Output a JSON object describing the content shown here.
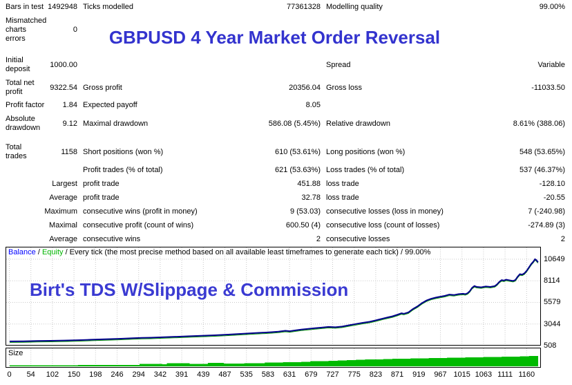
{
  "report": {
    "title": "GBPUSD 4 Year Market Order Reversal",
    "rows": [
      {
        "a": "Bars in test",
        "b": "1492948",
        "c": "Ticks modelled",
        "d": "77361328",
        "e": "Modelling quality",
        "f": "99.00%"
      },
      {
        "a": "Mismatched\ncharts\nerrors",
        "b": "0",
        "c": "",
        "d": "",
        "e": "",
        "f": ""
      },
      {
        "a": "Initial\ndeposit",
        "b": "1000.00",
        "c": "",
        "d": "",
        "e": "Spread",
        "f": "Variable"
      },
      {
        "a": "Total net\nprofit",
        "b": "9322.54",
        "c": "Gross profit",
        "d": "20356.04",
        "e": "Gross loss",
        "f": "-11033.50"
      },
      {
        "a": "Profit factor",
        "b": "1.84",
        "c": "Expected payoff",
        "d": "8.05",
        "e": "",
        "f": ""
      },
      {
        "a": "Absolute\ndrawdown",
        "b": "9.12",
        "c": "Maximal drawdown",
        "d": "586.08 (5.45%)",
        "e": "Relative drawdown",
        "f": "8.61% (388.06)"
      },
      {
        "a": "Total\ntrades",
        "b": "1158",
        "c": "Short positions (won %)",
        "d": "610 (53.61%)",
        "e": "Long positions (won %)",
        "f": "548 (53.65%)"
      },
      {
        "a": "",
        "b": "",
        "c": "Profit trades (% of total)",
        "d": "621 (53.63%)",
        "e": "Loss trades (% of total)",
        "f": "537 (46.37%)"
      },
      {
        "a": "",
        "b": "Largest",
        "c": "profit trade",
        "d": "451.88",
        "e": "loss trade",
        "f": "-128.10"
      },
      {
        "a": "",
        "b": "Average",
        "c": "profit trade",
        "d": "32.78",
        "e": "loss trade",
        "f": "-20.55"
      },
      {
        "a": "",
        "b": "Maximum",
        "c": "consecutive wins (profit in money)",
        "d": "9 (53.03)",
        "e": "consecutive losses (loss in money)",
        "f": "7 (-240.98)"
      },
      {
        "a": "",
        "b": "Maximal",
        "c": "consecutive profit (count of wins)",
        "d": "600.50 (4)",
        "e": "consecutive loss (count of losses)",
        "f": "-274.89 (3)"
      },
      {
        "a": "",
        "b": "Average",
        "c": "consecutive wins",
        "d": "2",
        "e": "consecutive losses",
        "f": "2"
      }
    ]
  },
  "chart": {
    "legend_balance": "Balance",
    "legend_sep": " / ",
    "legend_equity": "Equity",
    "legend_rest": " / Every tick (the most precise method based on all available least timeframes to generate each tick) / 99.00%",
    "watermark": "Birt's TDS W/Slippage & Commission",
    "size_label": "Size",
    "colors": {
      "grid": "#C8C8C8",
      "balance_line": "#00008B",
      "equity_line": "#009000",
      "size_fill": "#00BA00",
      "legend_balance": "#0000FF",
      "legend_equity": "#00B400",
      "title_blue": "#3333CE"
    }
  },
  "chart_data": {
    "type": "line",
    "title": "Balance / Equity curve with trade size histogram",
    "xlabel_ticks": [
      0,
      54,
      102,
      150,
      198,
      246,
      294,
      342,
      391,
      439,
      487,
      535,
      583,
      631,
      679,
      727,
      775,
      823,
      871,
      919,
      967,
      1015,
      1063,
      1111,
      1160
    ],
    "ylabel_ticks": [
      508,
      3044,
      5579,
      8114,
      10649
    ],
    "xlim": [
      0,
      1185
    ],
    "ylim": [
      300,
      11000
    ],
    "grid": true,
    "legend_position": "top-left",
    "series": [
      {
        "name": "Balance",
        "type": "line",
        "points": [
          [
            0,
            1000
          ],
          [
            30,
            1020
          ],
          [
            60,
            1050
          ],
          [
            90,
            1075
          ],
          [
            120,
            1110
          ],
          [
            150,
            1150
          ],
          [
            180,
            1205
          ],
          [
            210,
            1260
          ],
          [
            240,
            1315
          ],
          [
            270,
            1385
          ],
          [
            290,
            1420
          ],
          [
            310,
            1445
          ],
          [
            330,
            1485
          ],
          [
            360,
            1540
          ],
          [
            390,
            1600
          ],
          [
            420,
            1665
          ],
          [
            450,
            1725
          ],
          [
            480,
            1805
          ],
          [
            500,
            1870
          ],
          [
            520,
            1930
          ],
          [
            540,
            1990
          ],
          [
            560,
            2045
          ],
          [
            575,
            2090
          ],
          [
            590,
            2150
          ],
          [
            605,
            2250
          ],
          [
            615,
            2205
          ],
          [
            625,
            2285
          ],
          [
            640,
            2400
          ],
          [
            655,
            2480
          ],
          [
            670,
            2560
          ],
          [
            685,
            2625
          ],
          [
            700,
            2705
          ],
          [
            715,
            2665
          ],
          [
            730,
            2750
          ],
          [
            745,
            2900
          ],
          [
            760,
            3050
          ],
          [
            775,
            3185
          ],
          [
            790,
            3305
          ],
          [
            800,
            3425
          ],
          [
            810,
            3560
          ],
          [
            820,
            3700
          ],
          [
            830,
            3825
          ],
          [
            840,
            3950
          ],
          [
            850,
            4120
          ],
          [
            860,
            4305
          ],
          [
            865,
            4250
          ],
          [
            875,
            4405
          ],
          [
            885,
            4800
          ],
          [
            895,
            5105
          ],
          [
            905,
            5500
          ],
          [
            915,
            5805
          ],
          [
            925,
            6005
          ],
          [
            935,
            6150
          ],
          [
            945,
            6255
          ],
          [
            955,
            6350
          ],
          [
            965,
            6500
          ],
          [
            975,
            6450
          ],
          [
            985,
            6555
          ],
          [
            995,
            6600
          ],
          [
            1000,
            6550
          ],
          [
            1005,
            6655
          ],
          [
            1010,
            6905
          ],
          [
            1015,
            7300
          ],
          [
            1020,
            7500
          ],
          [
            1025,
            7400
          ],
          [
            1035,
            7355
          ],
          [
            1045,
            7455
          ],
          [
            1055,
            7400
          ],
          [
            1065,
            7505
          ],
          [
            1070,
            7700
          ],
          [
            1075,
            8005
          ],
          [
            1080,
            8200
          ],
          [
            1085,
            8150
          ],
          [
            1090,
            8255
          ],
          [
            1095,
            8200
          ],
          [
            1100,
            8150
          ],
          [
            1105,
            8100
          ],
          [
            1110,
            8205
          ],
          [
            1115,
            8600
          ],
          [
            1120,
            8900
          ],
          [
            1125,
            8850
          ],
          [
            1130,
            9005
          ],
          [
            1135,
            9300
          ],
          [
            1140,
            9700
          ],
          [
            1145,
            10100
          ],
          [
            1150,
            10400
          ],
          [
            1153,
            10649
          ],
          [
            1156,
            10550
          ],
          [
            1158,
            10400
          ],
          [
            1160,
            10322.54
          ]
        ]
      },
      {
        "name": "Equity",
        "type": "line",
        "follows_balance": true
      },
      {
        "name": "Size",
        "type": "area",
        "points": [
          [
            0,
            1.5
          ],
          [
            100,
            1.5
          ],
          [
            150,
            2
          ],
          [
            280,
            2
          ],
          [
            285,
            3.5
          ],
          [
            330,
            3.5
          ],
          [
            335,
            3
          ],
          [
            345,
            4.5
          ],
          [
            390,
            4.5
          ],
          [
            395,
            3.5
          ],
          [
            430,
            3.5
          ],
          [
            435,
            5
          ],
          [
            465,
            5
          ],
          [
            470,
            4
          ],
          [
            515,
            4.5
          ],
          [
            555,
            4.5
          ],
          [
            560,
            5.5
          ],
          [
            600,
            6
          ],
          [
            640,
            6.5
          ],
          [
            660,
            7.5
          ],
          [
            700,
            8
          ],
          [
            720,
            8.5
          ],
          [
            740,
            9
          ],
          [
            760,
            9.5
          ],
          [
            780,
            10
          ],
          [
            820,
            10.5
          ],
          [
            840,
            11
          ],
          [
            880,
            11.5
          ],
          [
            920,
            12
          ],
          [
            960,
            12.5
          ],
          [
            1000,
            13
          ],
          [
            1040,
            13.5
          ],
          [
            1080,
            14
          ],
          [
            1120,
            14.5
          ],
          [
            1140,
            15
          ],
          [
            1160,
            15
          ]
        ]
      }
    ]
  }
}
